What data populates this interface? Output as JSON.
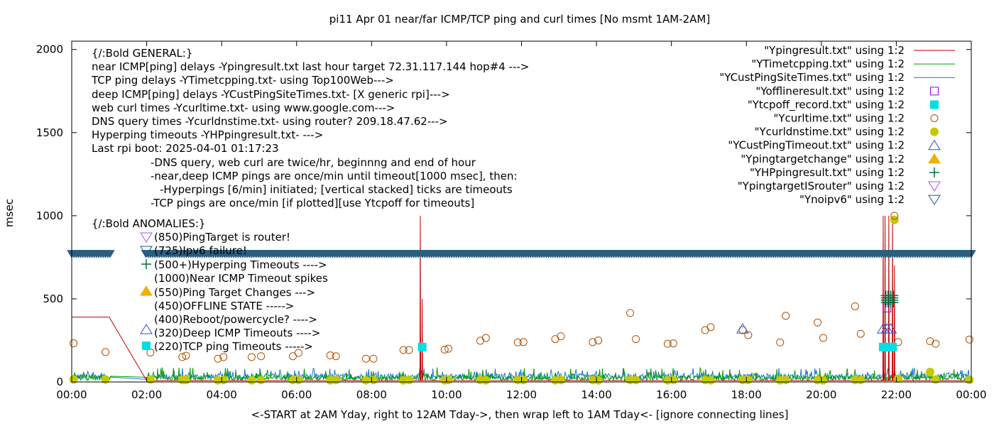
{
  "chart_data": {
    "type": "scatter",
    "title": "pi11 Apr 01  near/far ICMP/TCP ping and curl times [No msmt 1AM-2AM]",
    "xlabel": "<-START at 2AM Yday, right to 12AM Tday->, then wrap left to 1AM Tday<- [ignore connecting lines]",
    "ylabel": "msec",
    "xlim": [
      0,
      24
    ],
    "ylim": [
      0,
      2050
    ],
    "x_ticks": [
      "00:00",
      "02:00",
      "04:00",
      "06:00",
      "08:00",
      "10:00",
      "12:00",
      "14:00",
      "16:00",
      "18:00",
      "20:00",
      "22:00",
      "00:00"
    ],
    "y_ticks": [
      0,
      500,
      1000,
      1500,
      2000
    ],
    "legend_position": "top-right",
    "legend": [
      {
        "label": "\"Ypingresult.txt\" using 1:2",
        "kind": "line",
        "color": "#c00000"
      },
      {
        "label": "\"YTimetcpping.txt\" using 1:2",
        "kind": "line",
        "color": "#009e00"
      },
      {
        "label": "\"YCustPingSiteTimes.txt\" using 1:2",
        "kind": "line",
        "color": "#1f77c4"
      },
      {
        "label": "\"Yofflineresult.txt\" using 1:2",
        "kind": "square-open",
        "color": "#9400d3"
      },
      {
        "label": "\"Ytcpoff_record.txt\" using 1:2",
        "kind": "square-filled",
        "color": "#00e0e0"
      },
      {
        "label": "\"Ycurltime.txt\" using 1:2",
        "kind": "circle-open",
        "color": "#b05000"
      },
      {
        "label": "\"Ycurldnstime.txt\" using 1:2",
        "kind": "circle-filled",
        "color": "#c8c800"
      },
      {
        "label": "\"YCustPingTimeout.txt\" using 1:2",
        "kind": "triangle-open",
        "color": "#3050d0"
      },
      {
        "label": "\"Ypingtargetchange\" using 1:2",
        "kind": "triangle-filled",
        "color": "#f0b000"
      },
      {
        "label": "\"YHPpingresult.txt\" using 1:2",
        "kind": "plus",
        "color": "#007040"
      },
      {
        "label": "\"YpingtargetISrouter\" using 1:2",
        "kind": "triangle-down-open",
        "color": "#b050e0"
      },
      {
        "label": "\"Ynoipv6\" using 1:2",
        "kind": "triangle-down-open",
        "color": "#1e5a80"
      }
    ],
    "annotations": [
      "{/:Bold GENERAL:}",
      "near ICMP[ping] delays -Ypingresult.txt last hour target 72.31.117.144 hop#4 --->",
      "TCP ping delays -YTimetcpping.txt- using Top100Web--->",
      "deep ICMP[ping] delays -YCustPingSiteTimes.txt- [X generic rpi]--->",
      "web curl times -Ycurltime.txt- using www.google.com--->",
      "DNS query times -Ycurldnstime.txt- using router? 209.18.47.62--->",
      "Hyperping timeouts -YHPpingresult.txt- --->",
      "Last rpi boot: 2025-04-01 01:17:23",
      "-DNS query, web curl are twice/hr, beginnng and end of hour",
      "-near,deep ICMP pings are once/min until timeout[1000 msec], then:",
      "-Hyperpings [6/min] initiated; [vertical stacked] ticks are timeouts",
      "-TCP pings are once/min [if plotted][use Ytcpoff for timeouts]",
      "{/:Bold ANOMALIES:}",
      "(850)PingTarget is router!",
      "(725)Ipv6 failure!",
      "(500+)Hyperping Timeouts ---->",
      "(1000)Near ICMP Timeout spikes",
      "(550)Ping Target Changes --->",
      "(450)OFFLINE STATE ----->",
      "(400)Reboot/powercycle? ---->",
      "(320)Deep ICMP Timeouts ---->",
      "(220)TCP ping Timeouts ----->"
    ],
    "series": {
      "curltime": [
        [
          0.05,
          233
        ],
        [
          0.9,
          180
        ],
        [
          2.1,
          178
        ],
        [
          2.95,
          150
        ],
        [
          3.05,
          158
        ],
        [
          3.9,
          140
        ],
        [
          4.05,
          150
        ],
        [
          4.8,
          150
        ],
        [
          5.05,
          155
        ],
        [
          5.9,
          155
        ],
        [
          6.05,
          175
        ],
        [
          6.9,
          160
        ],
        [
          7.05,
          155
        ],
        [
          7.85,
          140
        ],
        [
          8.05,
          140
        ],
        [
          8.85,
          192
        ],
        [
          9.0,
          192
        ],
        [
          9.95,
          195
        ],
        [
          10.05,
          200
        ],
        [
          10.9,
          248
        ],
        [
          11.05,
          265
        ],
        [
          11.9,
          238
        ],
        [
          12.05,
          240
        ],
        [
          12.9,
          258
        ],
        [
          13.05,
          275
        ],
        [
          13.9,
          240
        ],
        [
          14.05,
          250
        ],
        [
          14.9,
          415
        ],
        [
          15.05,
          258
        ],
        [
          15.9,
          230
        ],
        [
          16.05,
          232
        ],
        [
          16.9,
          312
        ],
        [
          17.05,
          330
        ],
        [
          17.9,
          312
        ],
        [
          18.05,
          282
        ],
        [
          18.9,
          238
        ],
        [
          19.05,
          398
        ],
        [
          19.9,
          358
        ],
        [
          20.05,
          265
        ],
        [
          20.9,
          455
        ],
        [
          21.05,
          290
        ],
        [
          21.95,
          1000
        ],
        [
          22.05,
          240
        ],
        [
          22.9,
          245
        ],
        [
          23.05,
          230
        ],
        [
          23.95,
          255
        ]
      ],
      "curldnstime": [
        [
          0.05,
          15
        ],
        [
          0.9,
          15
        ],
        [
          2.1,
          15
        ],
        [
          2.95,
          12
        ],
        [
          3.05,
          12
        ],
        [
          3.9,
          10
        ],
        [
          4.05,
          12
        ],
        [
          4.8,
          10
        ],
        [
          5.05,
          12
        ],
        [
          5.9,
          12
        ],
        [
          6.05,
          12
        ],
        [
          6.9,
          10
        ],
        [
          7.05,
          12
        ],
        [
          7.85,
          10
        ],
        [
          8.05,
          12
        ],
        [
          8.85,
          10
        ],
        [
          9.0,
          12
        ],
        [
          9.95,
          10
        ],
        [
          10.05,
          12
        ],
        [
          10.9,
          12
        ],
        [
          11.05,
          10
        ],
        [
          11.9,
          12
        ],
        [
          12.05,
          12
        ],
        [
          12.9,
          10
        ],
        [
          13.05,
          12
        ],
        [
          13.9,
          12
        ],
        [
          14.05,
          10
        ],
        [
          14.9,
          12
        ],
        [
          15.05,
          12
        ],
        [
          15.9,
          10
        ],
        [
          16.05,
          12
        ],
        [
          16.9,
          12
        ],
        [
          17.05,
          10
        ],
        [
          17.9,
          12
        ],
        [
          18.05,
          12
        ],
        [
          18.9,
          10
        ],
        [
          19.05,
          12
        ],
        [
          19.9,
          12
        ],
        [
          20.05,
          10
        ],
        [
          20.9,
          12
        ],
        [
          21.05,
          12
        ],
        [
          21.95,
          975
        ],
        [
          22.05,
          20
        ],
        [
          22.9,
          60
        ],
        [
          23.05,
          15
        ],
        [
          23.95,
          12
        ]
      ],
      "tcpoff_record": [
        [
          9.35,
          210
        ],
        [
          21.65,
          210
        ],
        [
          21.8,
          210
        ],
        [
          21.9,
          210
        ]
      ],
      "offline": [
        [
          21.75,
          445
        ]
      ],
      "custping_timeout": [
        [
          17.9,
          320
        ],
        [
          21.65,
          320
        ],
        [
          21.75,
          320
        ],
        [
          21.85,
          320
        ]
      ],
      "hpping_timeouts": [
        [
          21.72,
          520
        ],
        [
          21.78,
          520
        ],
        [
          21.85,
          520
        ],
        [
          21.92,
          520
        ]
      ],
      "noipv6_band_y": 770,
      "noipv6_gap": [
        1.05,
        1.95
      ]
    }
  }
}
